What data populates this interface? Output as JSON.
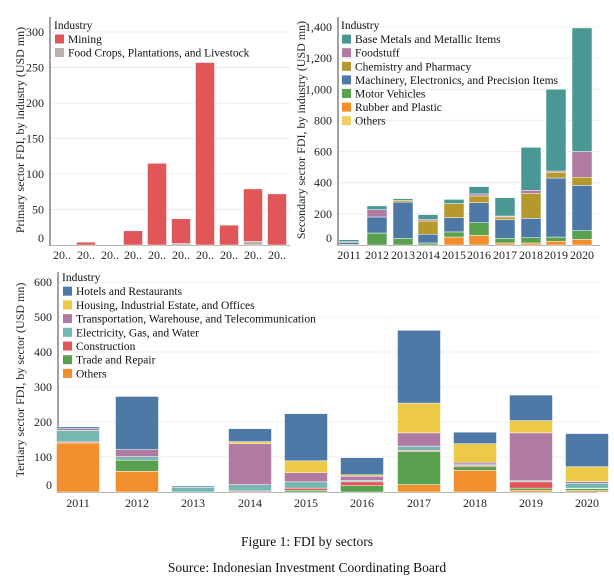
{
  "caption": "Figure 1: FDI by sectors",
  "source": "Source: Indonesian Investment Coordinating Board",
  "chart_data": [
    {
      "type": "bar",
      "stacked": true,
      "ylabel": "Primary sector FDI, by industry (USD mn)",
      "legend_title": "Industry",
      "legend_placement": "top-left",
      "categories": [
        "20..",
        "20..",
        "20..",
        "20..",
        "20..",
        "20..",
        "20..",
        "20..",
        "20..",
        "20.."
      ],
      "ylim": [
        0,
        300
      ],
      "yticks": [
        0,
        50,
        100,
        150,
        200,
        250,
        300
      ],
      "grid": true,
      "series": [
        {
          "name": "Mining",
          "color": "#e15759",
          "values": [
            0,
            4,
            0,
            20,
            115,
            35,
            257,
            28,
            74,
            72
          ]
        },
        {
          "name": "Food Crops, Plantations, and Livestock",
          "color": "#bab0ac",
          "values": [
            0,
            0,
            0,
            0,
            0,
            2,
            0,
            0,
            5,
            0
          ]
        }
      ]
    },
    {
      "type": "bar",
      "stacked": true,
      "ylabel": "Secondary sector FDI, by industry (USD mn)",
      "legend_title": "Industry",
      "legend_placement": "top-left",
      "categories": [
        "2011",
        "2012",
        "2013",
        "2014",
        "2015",
        "2016",
        "2017",
        "2018",
        "2019",
        "2020"
      ],
      "ylim": [
        0,
        1400
      ],
      "yticks": [
        0,
        200,
        400,
        600,
        800,
        1000,
        1200,
        1400
      ],
      "grid": true,
      "series": [
        {
          "name": "Base Metals and Metallic Items",
          "color": "#499894",
          "values": [
            13,
            24,
            11,
            32,
            27,
            47,
            118,
            276,
            525,
            794
          ]
        },
        {
          "name": "Foodstuff",
          "color": "#b07aa1",
          "values": [
            6,
            47,
            0,
            9,
            0,
            13,
            6,
            19,
            8,
            165
          ]
        },
        {
          "name": "Chemistry and Pharmacy",
          "color": "#b6992d",
          "values": [
            0,
            0,
            11,
            85,
            90,
            43,
            17,
            161,
            37,
            52
          ]
        },
        {
          "name": "Machinery, Electronics, and Precision Items",
          "color": "#4e79a7",
          "values": [
            12,
            103,
            233,
            56,
            92,
            129,
            120,
            124,
            379,
            291
          ]
        },
        {
          "name": "Motor Vehicles",
          "color": "#59a14f",
          "values": [
            3,
            77,
            43,
            13,
            33,
            81,
            30,
            34,
            27,
            56
          ]
        },
        {
          "name": "Rubber and Plastic",
          "color": "#f28e2b",
          "values": [
            0,
            0,
            0,
            0,
            51,
            62,
            13,
            13,
            24,
            36
          ]
        },
        {
          "name": "Others",
          "color": "#f1ce63",
          "values": [
            0,
            0,
            0,
            0,
            0,
            0,
            0,
            0,
            0,
            0
          ]
        }
      ]
    },
    {
      "type": "bar",
      "stacked": true,
      "ylabel": "Tertiary sector FDI, by sector (USD mn)",
      "legend_title": "Industry",
      "legend_placement": "top-left",
      "categories": [
        "2011",
        "2012",
        "2013",
        "2014",
        "2015",
        "2016",
        "2017",
        "2018",
        "2019",
        "2020"
      ],
      "ylim": [
        0,
        600
      ],
      "yticks": [
        0,
        100,
        200,
        300,
        400,
        500,
        600
      ],
      "grid": true,
      "series": [
        {
          "name": "Hotels and Restaurants",
          "color": "#4e79a7",
          "values": [
            5,
            152,
            4,
            37,
            135,
            49,
            208,
            33,
            73,
            95
          ]
        },
        {
          "name": "Housing, Industrial Estate, and Offices",
          "color": "#edc948",
          "values": [
            0,
            0,
            0,
            6,
            34,
            4,
            85,
            53,
            35,
            42
          ]
        },
        {
          "name": "Transportation, Warehouse, and Telecommunication",
          "color": "#b07aa1",
          "values": [
            5,
            20,
            0,
            117,
            26,
            12,
            38,
            5,
            137,
            5
          ]
        },
        {
          "name": "Electricity, Gas, and Water",
          "color": "#76b7b2",
          "values": [
            33,
            10,
            13,
            18,
            18,
            4,
            12,
            4,
            3,
            14
          ]
        },
        {
          "name": "Construction",
          "color": "#e15759",
          "values": [
            3,
            0,
            0,
            3,
            6,
            11,
            3,
            4,
            18,
            1
          ]
        },
        {
          "name": "Trade and Repair",
          "color": "#59a14f",
          "values": [
            0,
            32,
            0,
            0,
            5,
            18,
            95,
            10,
            6,
            6
          ]
        },
        {
          "name": "Others",
          "color": "#f28e2b",
          "values": [
            140,
            59,
            0,
            0,
            0,
            0,
            21,
            62,
            5,
            4
          ]
        }
      ]
    }
  ]
}
